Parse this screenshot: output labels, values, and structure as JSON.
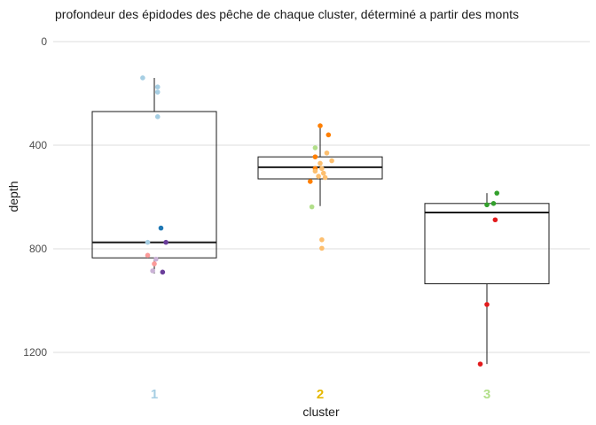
{
  "chart_data": {
    "type": "box",
    "title": "profondeur des épidodes des pêche de chaque cluster, déterminé a partir des monts",
    "xlabel": "cluster",
    "ylabel": "depth",
    "y_reversed": true,
    "ylim": [
      0,
      1260
    ],
    "yticks": [
      0,
      400,
      800,
      1200
    ],
    "grid": "horizontal",
    "categories": [
      "1",
      "2",
      "3"
    ],
    "category_label_colors": [
      "#a6cee3",
      "#e6b800",
      "#b2df8a"
    ],
    "boxes": [
      {
        "category": "1",
        "whisker_low": 140,
        "q1": 270,
        "median": 775,
        "q3": 835,
        "whisker_high": 895
      },
      {
        "category": "2",
        "whisker_low": 325,
        "q1": 445,
        "median": 485,
        "q3": 530,
        "whisker_high": 635
      },
      {
        "category": "3",
        "whisker_low": 585,
        "q1": 625,
        "median": 660,
        "q3": 935,
        "whisker_high": 1245
      }
    ],
    "points": [
      {
        "cluster": "1",
        "offset": -0.07,
        "y": 140,
        "color": "#a6cee3"
      },
      {
        "cluster": "1",
        "offset": 0.02,
        "y": 175,
        "color": "#a6cee3"
      },
      {
        "cluster": "1",
        "offset": 0.02,
        "y": 195,
        "color": "#a6cee3"
      },
      {
        "cluster": "1",
        "offset": 0.02,
        "y": 290,
        "color": "#a6cee3"
      },
      {
        "cluster": "1",
        "offset": 0.04,
        "y": 720,
        "color": "#1f78b4"
      },
      {
        "cluster": "1",
        "offset": -0.04,
        "y": 775,
        "color": "#a6cee3"
      },
      {
        "cluster": "1",
        "offset": 0.07,
        "y": 775,
        "color": "#6a3d9a"
      },
      {
        "cluster": "1",
        "offset": -0.04,
        "y": 825,
        "color": "#fb9a99"
      },
      {
        "cluster": "1",
        "offset": 0.01,
        "y": 840,
        "color": "#cab2d6"
      },
      {
        "cluster": "1",
        "offset": 0.0,
        "y": 858,
        "color": "#fb9a99"
      },
      {
        "cluster": "1",
        "offset": -0.01,
        "y": 885,
        "color": "#cab2d6"
      },
      {
        "cluster": "1",
        "offset": 0.05,
        "y": 890,
        "color": "#6a3d9a"
      },
      {
        "cluster": "2",
        "offset": 0.0,
        "y": 325,
        "color": "#ff7f00"
      },
      {
        "cluster": "2",
        "offset": 0.05,
        "y": 360,
        "color": "#ff7f00"
      },
      {
        "cluster": "2",
        "offset": -0.03,
        "y": 410,
        "color": "#b2df8a"
      },
      {
        "cluster": "2",
        "offset": 0.04,
        "y": 430,
        "color": "#fdbf6f"
      },
      {
        "cluster": "2",
        "offset": -0.03,
        "y": 445,
        "color": "#ff7f00"
      },
      {
        "cluster": "2",
        "offset": 0.07,
        "y": 460,
        "color": "#fdbf6f"
      },
      {
        "cluster": "2",
        "offset": 0.0,
        "y": 470,
        "color": "#fdbf6f"
      },
      {
        "cluster": "2",
        "offset": -0.03,
        "y": 490,
        "color": "#ff7f00"
      },
      {
        "cluster": "2",
        "offset": 0.01,
        "y": 490,
        "color": "#fdbf6f"
      },
      {
        "cluster": "2",
        "offset": -0.03,
        "y": 500,
        "color": "#fdbf6f"
      },
      {
        "cluster": "2",
        "offset": 0.02,
        "y": 508,
        "color": "#fdbf6f"
      },
      {
        "cluster": "2",
        "offset": -0.01,
        "y": 520,
        "color": "#fdbf6f"
      },
      {
        "cluster": "2",
        "offset": 0.03,
        "y": 525,
        "color": "#fdbf6f"
      },
      {
        "cluster": "2",
        "offset": -0.06,
        "y": 540,
        "color": "#ff7f00"
      },
      {
        "cluster": "2",
        "offset": -0.05,
        "y": 638,
        "color": "#b2df8a"
      },
      {
        "cluster": "2",
        "offset": 0.01,
        "y": 765,
        "color": "#fdbf6f"
      },
      {
        "cluster": "2",
        "offset": 0.01,
        "y": 798,
        "color": "#fdbf6f"
      },
      {
        "cluster": "3",
        "offset": 0.06,
        "y": 585,
        "color": "#33a02c"
      },
      {
        "cluster": "3",
        "offset": 0.04,
        "y": 625,
        "color": "#33a02c"
      },
      {
        "cluster": "3",
        "offset": 0.0,
        "y": 630,
        "color": "#33a02c"
      },
      {
        "cluster": "3",
        "offset": 0.05,
        "y": 688,
        "color": "#e31a1c"
      },
      {
        "cluster": "3",
        "offset": 0.0,
        "y": 1015,
        "color": "#e31a1c"
      },
      {
        "cluster": "3",
        "offset": -0.04,
        "y": 1245,
        "color": "#e31a1c"
      }
    ]
  }
}
